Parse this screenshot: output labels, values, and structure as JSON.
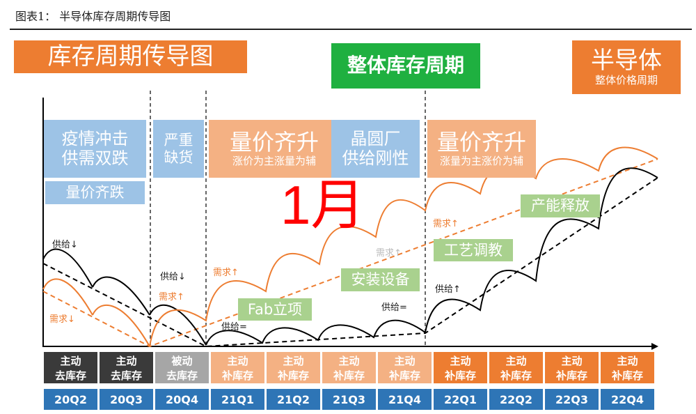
{
  "figure_title": "图表1：  半导体库存周期传导图",
  "header": {
    "left": "库存周期传导图",
    "center": "整体库存周期",
    "right_main": "半导体",
    "right_sub": "整体价格周期"
  },
  "phases": {
    "p1_line1": "疫情冲击",
    "p1_line2": "供需双跌",
    "p1_sub": "量价齐跌",
    "p2_line1": "严重",
    "p2_line2": "缺货",
    "p3_main": "量价齐升",
    "p3_sub": "涨价为主涨量为辅",
    "p4_line1": "晶圆厂",
    "p4_line2": "供给刚性",
    "p5_main": "量价齐升",
    "p5_sub": "涨量为主涨价为辅"
  },
  "overlay": "1月",
  "milestones": [
    "Fab立项",
    "安装设备",
    "工艺调教",
    "产能释放"
  ],
  "annotations": {
    "a1": "供给↓",
    "a2": "需求↓",
    "a3": "供给↓",
    "a4": "需求↑",
    "a5": "需求↑",
    "a6": "供给=",
    "a7": "需求↑",
    "a8": "供给=",
    "a9": "需求↑",
    "a10": "供给↑"
  },
  "colors": {
    "supply": "#000000",
    "demand": "#ed7d31",
    "quarter_blue": "#2e75b6",
    "dark": "#3a3a3a",
    "gray": "#a6a6a6",
    "light_orange": "#f4b183",
    "orange": "#ed7d31"
  },
  "quarters": [
    {
      "q": "20Q2",
      "l1": "主动",
      "l2": "去库存",
      "style": "dark"
    },
    {
      "q": "20Q3",
      "l1": "主动",
      "l2": "去库存",
      "style": "dark"
    },
    {
      "q": "20Q4",
      "l1": "被动",
      "l2": "去库存",
      "style": "gray"
    },
    {
      "q": "21Q1",
      "l1": "主动",
      "l2": "补库存",
      "style": "light_orange"
    },
    {
      "q": "21Q2",
      "l1": "主动",
      "l2": "补库存",
      "style": "light_orange"
    },
    {
      "q": "21Q3",
      "l1": "主动",
      "l2": "补库存",
      "style": "light_orange"
    },
    {
      "q": "21Q4",
      "l1": "主动",
      "l2": "补库存",
      "style": "light_orange"
    },
    {
      "q": "22Q1",
      "l1": "主动",
      "l2": "补库存",
      "style": "orange"
    },
    {
      "q": "22Q2",
      "l1": "主动",
      "l2": "补库存",
      "style": "orange"
    },
    {
      "q": "22Q3",
      "l1": "主动",
      "l2": "补库存",
      "style": "orange"
    },
    {
      "q": "22Q4",
      "l1": "主动",
      "l2": "补库存",
      "style": "orange"
    }
  ]
}
